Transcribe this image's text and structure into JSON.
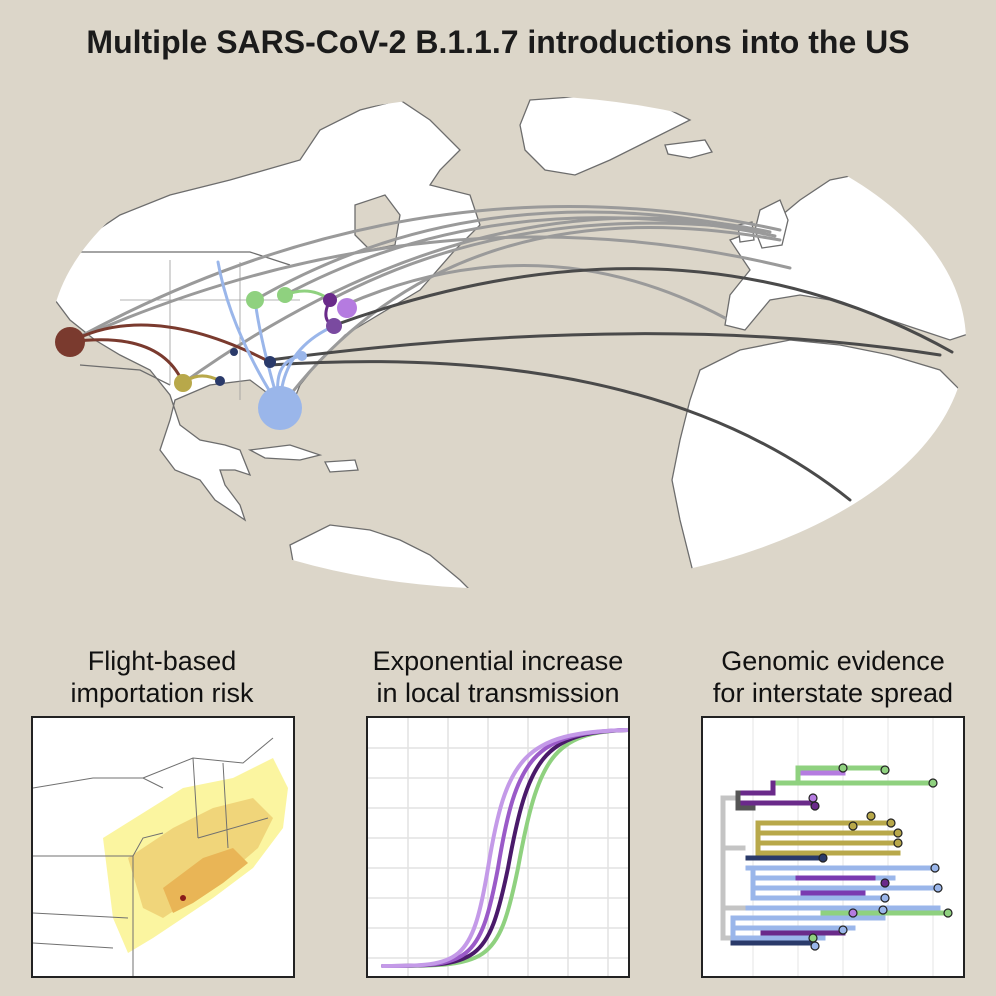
{
  "title": "Multiple SARS-CoV-2 B.1.1.7 introductions into the US",
  "panels": [
    {
      "line1": "Flight-based",
      "line2": "importation risk"
    },
    {
      "line1": "Exponential increase",
      "line2": "in local transmission"
    },
    {
      "line1": "Genomic evidence",
      "line2": "for interstate spread"
    }
  ],
  "colors": {
    "background": "#dcd6c9",
    "land": "#ffffff",
    "import_arc": "#9a9a9a",
    "import_arc_dark": "#4a4a4a",
    "california": "#7a3a2e",
    "florida": "#9ab6ea",
    "texas": "#b8a84a",
    "michigan": "#8fd17f",
    "new_york": "#6a2a8a",
    "massachusetts": "#b57be0",
    "navy": "#2a3a6a"
  }
}
